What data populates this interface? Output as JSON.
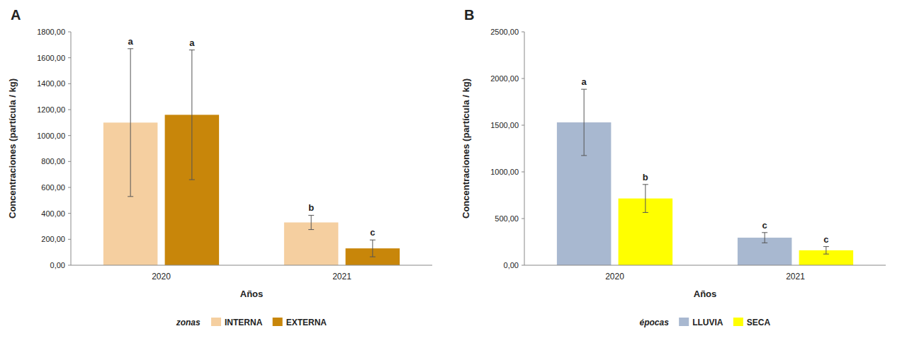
{
  "chart_data": [
    {
      "type": "bar",
      "title": "A",
      "categories": [
        "2020",
        "2021"
      ],
      "series": [
        {
          "name": "INTERNA",
          "color": "#F5CFA0",
          "values": [
            1100,
            330
          ],
          "errors": [
            570,
            55
          ],
          "letters": [
            "a",
            "b"
          ]
        },
        {
          "name": "EXTERNA",
          "color": "#C8860A",
          "values": [
            1160,
            130
          ],
          "errors": [
            500,
            65
          ],
          "letters": [
            "a",
            "c"
          ]
        }
      ],
      "x_label": "Años",
      "y_label": "Concentraciones (partícula / kg)",
      "ylim": [
        0,
        1800
      ],
      "yticks": [
        {
          "value": 0,
          "label": "0,00"
        },
        {
          "value": 200,
          "label": "200,00"
        },
        {
          "value": 400,
          "label": "400,00"
        },
        {
          "value": 600,
          "label": "600,00"
        },
        {
          "value": 800,
          "label": "800,00"
        },
        {
          "value": 1000,
          "label": "1000,00"
        },
        {
          "value": 1200,
          "label": "1200,00"
        },
        {
          "value": 1400,
          "label": "1400,00"
        },
        {
          "value": 1600,
          "label": "1600,00"
        },
        {
          "value": 1800,
          "label": "1800,00"
        }
      ],
      "legend_title": "zonas",
      "legend": "bottom",
      "grid": false
    },
    {
      "type": "bar",
      "title": "B",
      "categories": [
        "2020",
        "2021"
      ],
      "series": [
        {
          "name": "LLUVIA",
          "color": "#A8B8D0",
          "values": [
            1530,
            295
          ],
          "errors": [
            355,
            55
          ],
          "letters": [
            "a",
            "c"
          ]
        },
        {
          "name": "SECA",
          "color": "#FFFF00",
          "values": [
            715,
            160
          ],
          "errors": [
            150,
            40
          ],
          "letters": [
            "b",
            "c"
          ]
        }
      ],
      "x_label": "Años",
      "y_label": "Concentraciones (partícula / kg)",
      "ylim": [
        0,
        2500
      ],
      "yticks": [
        {
          "value": 0,
          "label": "0,00"
        },
        {
          "value": 500,
          "label": "500,00"
        },
        {
          "value": 1000,
          "label": "1000,00"
        },
        {
          "value": 1500,
          "label": "1500,00"
        },
        {
          "value": 2000,
          "label": "2000,00"
        },
        {
          "value": 2500,
          "label": "2500,00"
        }
      ],
      "legend_title": "épocas",
      "legend": "bottom",
      "grid": false
    }
  ]
}
